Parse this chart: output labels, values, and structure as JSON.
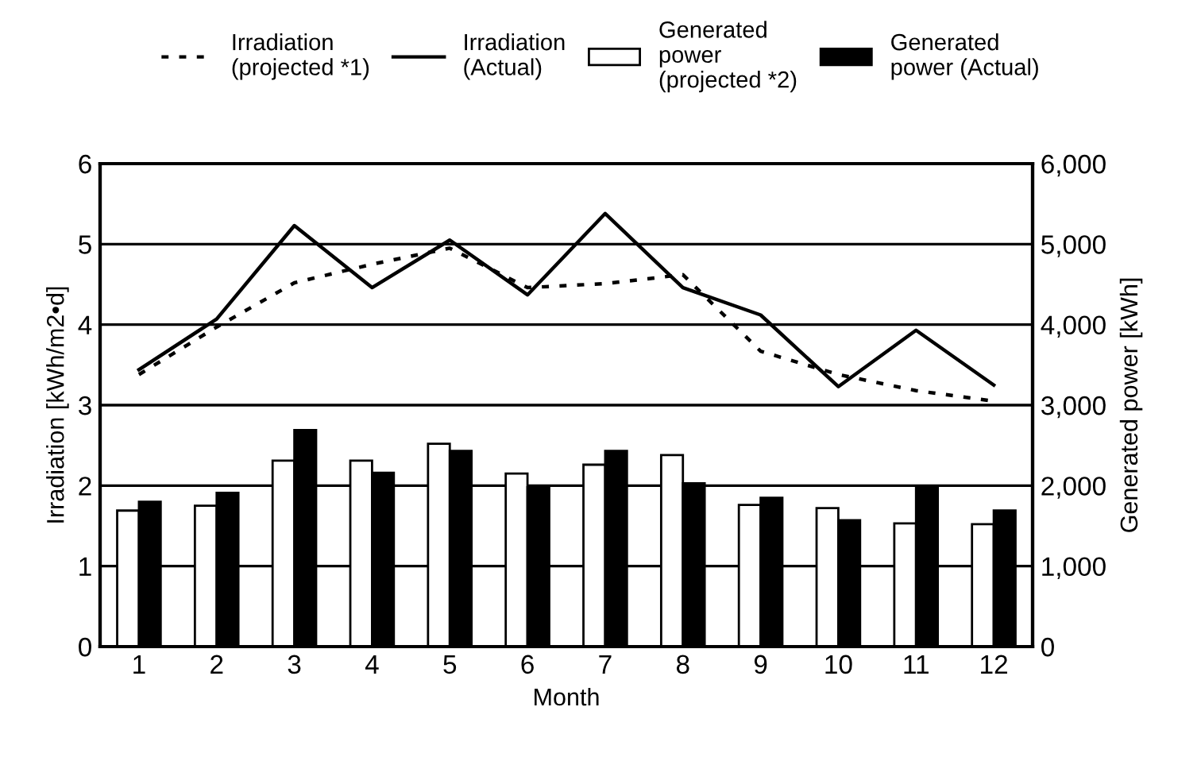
{
  "chart_data": {
    "type": "bar",
    "xlabel": "Month",
    "ylabel": "Irradiation [kWh/m2•d]",
    "y2label": "Generated power [kWh]",
    "categories": [
      "1",
      "2",
      "3",
      "4",
      "5",
      "6",
      "7",
      "8",
      "9",
      "10",
      "11",
      "12"
    ],
    "series": [
      {
        "name": "Irradiation\n(projected *1)",
        "type": "line",
        "line_style": "dotted",
        "color": "#000000",
        "values": [
          3.38,
          3.97,
          4.52,
          4.75,
          4.95,
          4.46,
          4.51,
          4.62,
          3.67,
          3.38,
          3.18,
          3.05
        ]
      },
      {
        "name": "Irradiation\n(Actual)",
        "type": "line",
        "line_style": "solid",
        "color": "#000000",
        "values": [
          3.44,
          4.07,
          5.23,
          4.46,
          5.05,
          4.37,
          5.38,
          4.46,
          4.12,
          3.23,
          3.93,
          3.25
        ]
      },
      {
        "name": "Generated\npower\n(projected *2)",
        "axis": "y2",
        "color": "#ffffff",
        "values": [
          1690,
          1750,
          2310,
          2310,
          2520,
          2150,
          2260,
          2380,
          1760,
          1720,
          1530,
          1520
        ]
      },
      {
        "name": "Generated\npower (Actual)",
        "axis": "y2",
        "color": "#000000",
        "values": [
          1800,
          1910,
          2690,
          2160,
          2430,
          1980,
          2430,
          2030,
          1850,
          1570,
          1970,
          1690
        ]
      }
    ],
    "ylim": [
      0,
      6
    ],
    "yticks": [
      0,
      1,
      2,
      3,
      4,
      5,
      6
    ],
    "y2lim": [
      0,
      6000
    ],
    "y2ticks": [
      {
        "value": 0,
        "label": "0"
      },
      {
        "value": 1000,
        "label": "1,000"
      },
      {
        "value": 2000,
        "label": "2,000"
      },
      {
        "value": 3000,
        "label": "3,000"
      },
      {
        "value": 4000,
        "label": "4,000"
      },
      {
        "value": 5000,
        "label": "5,000"
      },
      {
        "value": 6000,
        "label": "6,000"
      }
    ],
    "grid": "y",
    "legend": "top",
    "marker": "none"
  }
}
